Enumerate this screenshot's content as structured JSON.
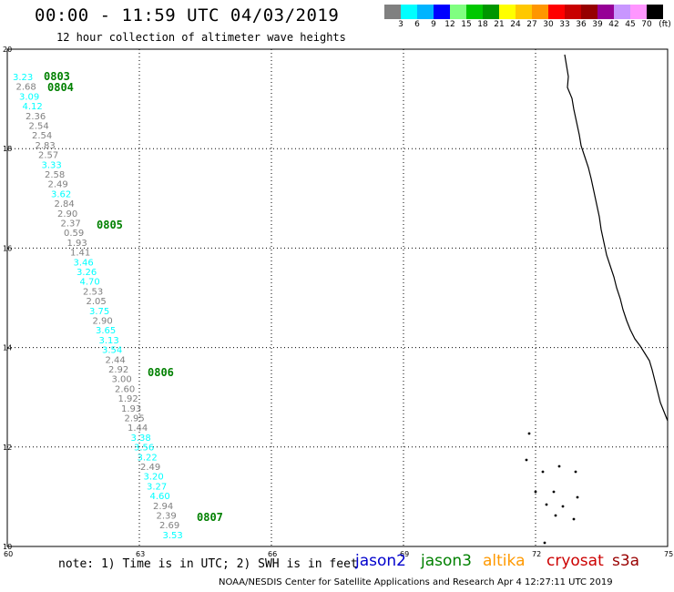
{
  "header": {
    "title": "00:00 - 11:59 UTC 04/03/2019",
    "subtitle": "12 hour collection of altimeter wave heights"
  },
  "color_scale": {
    "unit": "(ft)",
    "labels": [
      "3",
      "6",
      "9",
      "12",
      "15",
      "18",
      "21",
      "24",
      "27",
      "30",
      "33",
      "36",
      "39",
      "42",
      "45",
      "70"
    ],
    "colors": [
      "#808080",
      "#00ffff",
      "#00b4ff",
      "#0000ff",
      "#80ff80",
      "#00c800",
      "#009600",
      "#ffff00",
      "#ffc800",
      "#ff9600",
      "#ff0000",
      "#c80000",
      "#960000",
      "#960096",
      "#c896ff",
      "#ff96ff",
      "#000000"
    ]
  },
  "map": {
    "lon_range": [
      60,
      75
    ],
    "lat_range": [
      10,
      20
    ],
    "lon_labels": [
      "60",
      "63",
      "66",
      "69",
      "72",
      "75"
    ],
    "lat_labels": [
      "20",
      "18",
      "16",
      "14",
      "12",
      "10"
    ],
    "track": [
      {
        "v": "3.23",
        "color": "#00ffff"
      },
      {
        "v": "2.68",
        "color": "#808080"
      },
      {
        "v": "3.09",
        "color": "#00ffff"
      },
      {
        "v": "4.12",
        "color": "#00ffff"
      },
      {
        "v": "2.36",
        "color": "#808080"
      },
      {
        "v": "2.54",
        "color": "#808080"
      },
      {
        "v": "2.54",
        "color": "#808080"
      },
      {
        "v": "2.83",
        "color": "#808080"
      },
      {
        "v": "2.57",
        "color": "#808080"
      },
      {
        "v": "3.33",
        "color": "#00ffff"
      },
      {
        "v": "2.58",
        "color": "#808080"
      },
      {
        "v": "2.49",
        "color": "#808080"
      },
      {
        "v": "3.62",
        "color": "#00ffff"
      },
      {
        "v": "2.84",
        "color": "#808080"
      },
      {
        "v": "2.90",
        "color": "#808080"
      },
      {
        "v": "2.37",
        "color": "#808080"
      },
      {
        "v": "0.59",
        "color": "#808080"
      },
      {
        "v": "1.93",
        "color": "#808080"
      },
      {
        "v": "1.41",
        "color": "#808080"
      },
      {
        "v": "3.46",
        "color": "#00ffff"
      },
      {
        "v": "3.26",
        "color": "#00ffff"
      },
      {
        "v": "4.70",
        "color": "#00ffff"
      },
      {
        "v": "2.53",
        "color": "#808080"
      },
      {
        "v": "2.05",
        "color": "#808080"
      },
      {
        "v": "3.75",
        "color": "#00ffff"
      },
      {
        "v": "2.90",
        "color": "#808080"
      },
      {
        "v": "3.65",
        "color": "#00ffff"
      },
      {
        "v": "3.13",
        "color": "#00ffff"
      },
      {
        "v": "3.54",
        "color": "#00ffff"
      },
      {
        "v": "2.44",
        "color": "#808080"
      },
      {
        "v": "2.92",
        "color": "#808080"
      },
      {
        "v": "3.00",
        "color": "#808080"
      },
      {
        "v": "2.60",
        "color": "#808080"
      },
      {
        "v": "1.92",
        "color": "#808080"
      },
      {
        "v": "1.93",
        "color": "#808080"
      },
      {
        "v": "2.95",
        "color": "#808080"
      },
      {
        "v": "1.44",
        "color": "#808080"
      },
      {
        "v": "3.38",
        "color": "#00ffff"
      },
      {
        "v": "3.56",
        "color": "#00ffff"
      },
      {
        "v": "3.22",
        "color": "#00ffff"
      },
      {
        "v": "2.49",
        "color": "#808080"
      },
      {
        "v": "3.20",
        "color": "#00ffff"
      },
      {
        "v": "3.27",
        "color": "#00ffff"
      },
      {
        "v": "4.60",
        "color": "#00ffff"
      },
      {
        "v": "2.94",
        "color": "#808080"
      },
      {
        "v": "2.39",
        "color": "#808080"
      },
      {
        "v": "2.69",
        "color": "#808080"
      },
      {
        "v": "3.53",
        "color": "#00ffff"
      }
    ],
    "times": [
      "0803",
      "0804",
      "0805",
      "0806",
      "0807"
    ]
  },
  "note": "note: 1) Time is in UTC; 2) SWH is in feet",
  "satellites": [
    {
      "name": "jason2",
      "color": "#0000cc"
    },
    {
      "name": "jason3",
      "color": "#008000"
    },
    {
      "name": "altika",
      "color": "#ff9900"
    },
    {
      "name": "cryosat",
      "color": "#cc0000"
    },
    {
      "name": "s3a",
      "color": "#990000"
    }
  ],
  "footer": "NOAA/NESDIS Center for Satellite Applications and Research  Apr  4 12:27:11 UTC 2019"
}
